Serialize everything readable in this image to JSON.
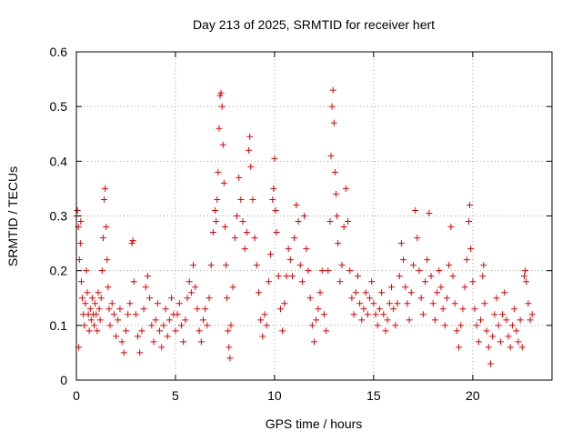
{
  "chart_data": {
    "type": "scatter",
    "title": "Day 213 of 2025, SRMTID for receiver hert",
    "xlabel": "GPS time / hours",
    "ylabel": "SRMTID / TECUs",
    "xlim": [
      0,
      24
    ],
    "ylim": [
      0,
      0.6
    ],
    "xticks": [
      0,
      5,
      10,
      15,
      20
    ],
    "xtick_labels": [
      "0",
      "5",
      "10",
      "15",
      "20"
    ],
    "yticks": [
      0,
      0.1,
      0.2,
      0.3,
      0.4,
      0.5,
      0.6
    ],
    "ytick_labels": [
      "0",
      "0.1",
      "0.2",
      "0.3",
      "0.4",
      "0.5",
      "0.6"
    ],
    "grid": true,
    "marker": "+",
    "series": [
      {
        "name": "SRMTID",
        "color": "#e60000",
        "points": [
          [
            0.0,
            0.3
          ],
          [
            0.05,
            0.31
          ],
          [
            0.1,
            0.28
          ],
          [
            0.12,
            0.06
          ],
          [
            0.15,
            0.22
          ],
          [
            0.2,
            0.25
          ],
          [
            0.22,
            0.29
          ],
          [
            0.25,
            0.18
          ],
          [
            0.3,
            0.15
          ],
          [
            0.35,
            0.12
          ],
          [
            0.4,
            0.1
          ],
          [
            0.45,
            0.14
          ],
          [
            0.5,
            0.2
          ],
          [
            0.55,
            0.16
          ],
          [
            0.6,
            0.12
          ],
          [
            0.65,
            0.09
          ],
          [
            0.7,
            0.13
          ],
          [
            0.75,
            0.11
          ],
          [
            0.8,
            0.15
          ],
          [
            0.85,
            0.12
          ],
          [
            0.9,
            0.1
          ],
          [
            0.95,
            0.14
          ],
          [
            1.0,
            0.12
          ],
          [
            1.05,
            0.09
          ],
          [
            1.1,
            0.16
          ],
          [
            1.15,
            0.13
          ],
          [
            1.2,
            0.11
          ],
          [
            1.25,
            0.15
          ],
          [
            1.3,
            0.2
          ],
          [
            1.35,
            0.26
          ],
          [
            1.4,
            0.33
          ],
          [
            1.45,
            0.35
          ],
          [
            1.5,
            0.28
          ],
          [
            1.55,
            0.22
          ],
          [
            1.6,
            0.17
          ],
          [
            1.65,
            0.13
          ],
          [
            1.7,
            0.1
          ],
          [
            1.8,
            0.14
          ],
          [
            1.9,
            0.12
          ],
          [
            2.0,
            0.08
          ],
          [
            2.1,
            0.11
          ],
          [
            2.2,
            0.13
          ],
          [
            2.3,
            0.07
          ],
          [
            2.4,
            0.05
          ],
          [
            2.5,
            0.09
          ],
          [
            2.6,
            0.12
          ],
          [
            2.7,
            0.14
          ],
          [
            2.8,
            0.25
          ],
          [
            2.85,
            0.255
          ],
          [
            2.9,
            0.18
          ],
          [
            3.0,
            0.12
          ],
          [
            3.1,
            0.08
          ],
          [
            3.2,
            0.05
          ],
          [
            3.3,
            0.09
          ],
          [
            3.4,
            0.13
          ],
          [
            3.5,
            0.17
          ],
          [
            3.6,
            0.19
          ],
          [
            3.7,
            0.15
          ],
          [
            3.8,
            0.1
          ],
          [
            3.9,
            0.07
          ],
          [
            4.0,
            0.11
          ],
          [
            4.1,
            0.14
          ],
          [
            4.2,
            0.09
          ],
          [
            4.3,
            0.06
          ],
          [
            4.4,
            0.1
          ],
          [
            4.5,
            0.13
          ],
          [
            4.6,
            0.08
          ],
          [
            4.7,
            0.11
          ],
          [
            4.8,
            0.15
          ],
          [
            4.9,
            0.12
          ],
          [
            5.0,
            0.09
          ],
          [
            5.1,
            0.12
          ],
          [
            5.2,
            0.14
          ],
          [
            5.3,
            0.1
          ],
          [
            5.4,
            0.07
          ],
          [
            5.5,
            0.11
          ],
          [
            5.6,
            0.15
          ],
          [
            5.7,
            0.18
          ],
          [
            5.8,
            0.16
          ],
          [
            5.9,
            0.21
          ],
          [
            6.0,
            0.17
          ],
          [
            6.1,
            0.13
          ],
          [
            6.2,
            0.09
          ],
          [
            6.3,
            0.07
          ],
          [
            6.4,
            0.11
          ],
          [
            6.5,
            0.13
          ],
          [
            6.6,
            0.1
          ],
          [
            6.7,
            0.15
          ],
          [
            6.8,
            0.21
          ],
          [
            6.9,
            0.27
          ],
          [
            7.0,
            0.31
          ],
          [
            7.05,
            0.29
          ],
          [
            7.1,
            0.33
          ],
          [
            7.15,
            0.38
          ],
          [
            7.2,
            0.46
          ],
          [
            7.25,
            0.52
          ],
          [
            7.3,
            0.525
          ],
          [
            7.35,
            0.5
          ],
          [
            7.4,
            0.43
          ],
          [
            7.45,
            0.36
          ],
          [
            7.5,
            0.28
          ],
          [
            7.55,
            0.21
          ],
          [
            7.6,
            0.15
          ],
          [
            7.65,
            0.09
          ],
          [
            7.7,
            0.06
          ],
          [
            7.75,
            0.04
          ],
          [
            7.8,
            0.1
          ],
          [
            7.9,
            0.17
          ],
          [
            8.0,
            0.26
          ],
          [
            8.1,
            0.3
          ],
          [
            8.2,
            0.37
          ],
          [
            8.3,
            0.33
          ],
          [
            8.4,
            0.29
          ],
          [
            8.5,
            0.24
          ],
          [
            8.6,
            0.27
          ],
          [
            8.7,
            0.42
          ],
          [
            8.75,
            0.445
          ],
          [
            8.8,
            0.39
          ],
          [
            8.9,
            0.33
          ],
          [
            9.0,
            0.26
          ],
          [
            9.1,
            0.21
          ],
          [
            9.2,
            0.16
          ],
          [
            9.3,
            0.11
          ],
          [
            9.4,
            0.08
          ],
          [
            9.5,
            0.12
          ],
          [
            9.6,
            0.1
          ],
          [
            9.7,
            0.18
          ],
          [
            9.8,
            0.23
          ],
          [
            9.9,
            0.33
          ],
          [
            9.95,
            0.35
          ],
          [
            10.0,
            0.405
          ],
          [
            10.05,
            0.31
          ],
          [
            10.1,
            0.27
          ],
          [
            10.2,
            0.19
          ],
          [
            10.3,
            0.13
          ],
          [
            10.4,
            0.09
          ],
          [
            10.5,
            0.14
          ],
          [
            10.6,
            0.19
          ],
          [
            10.7,
            0.24
          ],
          [
            10.8,
            0.22
          ],
          [
            10.9,
            0.19
          ],
          [
            11.0,
            0.26
          ],
          [
            11.1,
            0.32
          ],
          [
            11.2,
            0.29
          ],
          [
            11.3,
            0.21
          ],
          [
            11.4,
            0.18
          ],
          [
            11.5,
            0.3
          ],
          [
            11.6,
            0.24
          ],
          [
            11.7,
            0.2
          ],
          [
            11.8,
            0.15
          ],
          [
            11.9,
            0.1
          ],
          [
            12.0,
            0.07
          ],
          [
            12.1,
            0.11
          ],
          [
            12.2,
            0.13
          ],
          [
            12.3,
            0.16
          ],
          [
            12.4,
            0.2
          ],
          [
            12.5,
            0.12
          ],
          [
            12.6,
            0.09
          ],
          [
            12.7,
            0.2
          ],
          [
            12.8,
            0.29
          ],
          [
            12.85,
            0.41
          ],
          [
            12.9,
            0.5
          ],
          [
            12.95,
            0.53
          ],
          [
            13.0,
            0.47
          ],
          [
            13.05,
            0.38
          ],
          [
            13.1,
            0.34
          ],
          [
            13.15,
            0.3
          ],
          [
            13.2,
            0.25
          ],
          [
            13.3,
            0.18
          ],
          [
            13.4,
            0.21
          ],
          [
            13.5,
            0.28
          ],
          [
            13.6,
            0.35
          ],
          [
            13.7,
            0.29
          ],
          [
            13.8,
            0.2
          ],
          [
            13.9,
            0.15
          ],
          [
            14.0,
            0.12
          ],
          [
            14.1,
            0.16
          ],
          [
            14.2,
            0.19
          ],
          [
            14.3,
            0.14
          ],
          [
            14.4,
            0.11
          ],
          [
            14.5,
            0.13
          ],
          [
            14.6,
            0.16
          ],
          [
            14.7,
            0.12
          ],
          [
            14.8,
            0.15
          ],
          [
            14.9,
            0.18
          ],
          [
            15.0,
            0.14
          ],
          [
            15.1,
            0.12
          ],
          [
            15.2,
            0.1
          ],
          [
            15.3,
            0.13
          ],
          [
            15.4,
            0.16
          ],
          [
            15.5,
            0.12
          ],
          [
            15.6,
            0.09
          ],
          [
            15.7,
            0.11
          ],
          [
            15.8,
            0.14
          ],
          [
            15.9,
            0.17
          ],
          [
            16.0,
            0.13
          ],
          [
            16.1,
            0.1
          ],
          [
            16.2,
            0.14
          ],
          [
            16.3,
            0.19
          ],
          [
            16.4,
            0.25
          ],
          [
            16.5,
            0.22
          ],
          [
            16.6,
            0.17
          ],
          [
            16.7,
            0.14
          ],
          [
            16.8,
            0.11
          ],
          [
            16.9,
            0.16
          ],
          [
            17.0,
            0.21
          ],
          [
            17.1,
            0.31
          ],
          [
            17.2,
            0.26
          ],
          [
            17.3,
            0.2
          ],
          [
            17.4,
            0.15
          ],
          [
            17.5,
            0.12
          ],
          [
            17.6,
            0.18
          ],
          [
            17.7,
            0.22
          ],
          [
            17.8,
            0.305
          ],
          [
            17.9,
            0.19
          ],
          [
            18.0,
            0.14
          ],
          [
            18.1,
            0.11
          ],
          [
            18.2,
            0.16
          ],
          [
            18.3,
            0.2
          ],
          [
            18.4,
            0.17
          ],
          [
            18.5,
            0.13
          ],
          [
            18.6,
            0.1
          ],
          [
            18.7,
            0.15
          ],
          [
            18.8,
            0.21
          ],
          [
            18.9,
            0.28
          ],
          [
            19.0,
            0.19
          ],
          [
            19.1,
            0.14
          ],
          [
            19.2,
            0.09
          ],
          [
            19.3,
            0.06
          ],
          [
            19.4,
            0.1
          ],
          [
            19.5,
            0.13
          ],
          [
            19.6,
            0.17
          ],
          [
            19.7,
            0.22
          ],
          [
            19.8,
            0.29
          ],
          [
            19.85,
            0.32
          ],
          [
            19.9,
            0.24
          ],
          [
            20.0,
            0.18
          ],
          [
            20.1,
            0.13
          ],
          [
            20.2,
            0.1
          ],
          [
            20.3,
            0.07
          ],
          [
            20.4,
            0.11
          ],
          [
            20.5,
            0.19
          ],
          [
            20.55,
            0.21
          ],
          [
            20.6,
            0.14
          ],
          [
            20.7,
            0.09
          ],
          [
            20.8,
            0.06
          ],
          [
            20.9,
            0.03
          ],
          [
            21.0,
            0.08
          ],
          [
            21.1,
            0.12
          ],
          [
            21.2,
            0.15
          ],
          [
            21.3,
            0.1
          ],
          [
            21.4,
            0.07
          ],
          [
            21.5,
            0.12
          ],
          [
            21.6,
            0.16
          ],
          [
            21.7,
            0.11
          ],
          [
            21.8,
            0.08
          ],
          [
            21.9,
            0.06
          ],
          [
            22.0,
            0.1
          ],
          [
            22.1,
            0.13
          ],
          [
            22.2,
            0.09
          ],
          [
            22.3,
            0.07
          ],
          [
            22.4,
            0.11
          ],
          [
            22.5,
            0.06
          ],
          [
            22.6,
            0.19
          ],
          [
            22.65,
            0.2
          ],
          [
            22.7,
            0.18
          ],
          [
            22.8,
            0.14
          ],
          [
            22.9,
            0.11
          ],
          [
            23.0,
            0.12
          ]
        ]
      }
    ]
  }
}
